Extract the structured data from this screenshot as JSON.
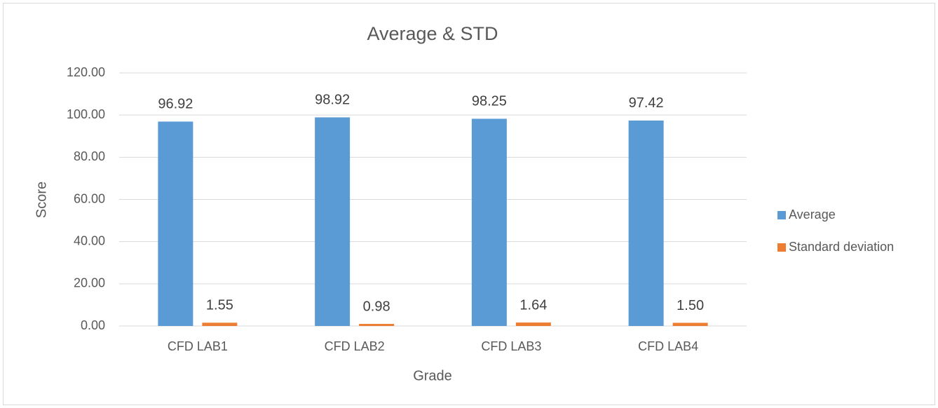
{
  "chart_data": {
    "type": "bar",
    "title": "Average & STD",
    "x_label": "Grade",
    "y_label": "Score",
    "categories": [
      "CFD LAB1",
      "CFD LAB2",
      "CFD LAB3",
      "CFD LAB4"
    ],
    "series": [
      {
        "name": "Average",
        "color": "#5b9bd5",
        "values": [
          96.92,
          98.92,
          98.25,
          97.42
        ],
        "value_labels": [
          "96.92",
          "98.92",
          "98.25",
          "97.42"
        ]
      },
      {
        "name": "Standard deviation",
        "color": "#ed7d31",
        "values": [
          1.55,
          0.98,
          1.64,
          1.5
        ],
        "value_labels": [
          "1.55",
          "0.98",
          "1.64",
          "1.50"
        ]
      }
    ],
    "ylim": [
      0,
      120
    ],
    "yticks": [
      {
        "value": 0,
        "label": "0.00"
      },
      {
        "value": 20,
        "label": "20.00"
      },
      {
        "value": 40,
        "label": "40.00"
      },
      {
        "value": 60,
        "label": "60.00"
      },
      {
        "value": 80,
        "label": "80.00"
      },
      {
        "value": 100,
        "label": "100.00"
      },
      {
        "value": 120,
        "label": "120.00"
      }
    ],
    "grid": true,
    "legend": "right"
  }
}
